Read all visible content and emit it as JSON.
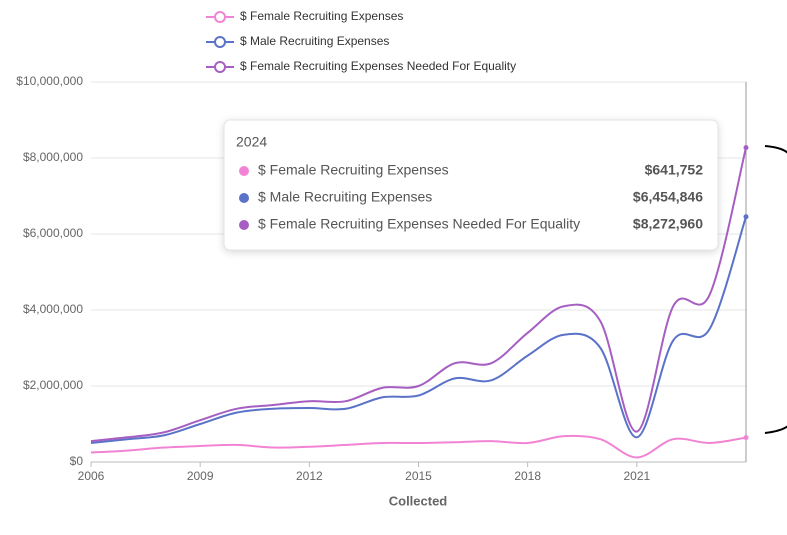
{
  "chart_data": {
    "type": "line",
    "x_label": "Collected",
    "x": [
      2006,
      2007,
      2008,
      2009,
      2010,
      2011,
      2012,
      2013,
      2014,
      2015,
      2016,
      2017,
      2018,
      2019,
      2020,
      2021,
      2022,
      2023,
      2024
    ],
    "xlim": [
      2006,
      2024
    ],
    "xticks": [
      2006,
      2009,
      2012,
      2015,
      2018,
      2021
    ],
    "ylim": [
      0,
      10000000
    ],
    "yticks": [
      {
        "value": 0,
        "label": "$0"
      },
      {
        "value": 2000000,
        "label": "$2,000,000"
      },
      {
        "value": 4000000,
        "label": "$4,000,000"
      },
      {
        "value": 6000000,
        "label": "$6,000,000"
      },
      {
        "value": 8000000,
        "label": "$8,000,000"
      },
      {
        "value": 10000000,
        "label": "$10,000,000"
      }
    ],
    "grid": true,
    "series": [
      {
        "name": "$ Female Recruiting Expenses",
        "color": "#f283d4",
        "values": [
          250000,
          300000,
          380000,
          420000,
          450000,
          380000,
          400000,
          450000,
          500000,
          500000,
          520000,
          550000,
          500000,
          680000,
          600000,
          120000,
          600000,
          500000,
          641752
        ]
      },
      {
        "name": "$ Male Recruiting Expenses",
        "color": "#5a72c8",
        "values": [
          500000,
          600000,
          700000,
          1000000,
          1300000,
          1400000,
          1420000,
          1400000,
          1700000,
          1750000,
          2200000,
          2150000,
          2800000,
          3350000,
          3000000,
          650000,
          3200000,
          3500000,
          6454846
        ]
      },
      {
        "name": "$ Female Recruiting Expenses Needed For Equality",
        "color": "#a65ec2",
        "values": [
          550000,
          650000,
          780000,
          1100000,
          1400000,
          1500000,
          1600000,
          1600000,
          1950000,
          2000000,
          2600000,
          2600000,
          3400000,
          4100000,
          3700000,
          800000,
          4100000,
          4400000,
          8272960
        ]
      }
    ],
    "tooltip_labels": [
      "$641,752",
      "$6,454,846",
      "$8,272,960"
    ]
  }
}
